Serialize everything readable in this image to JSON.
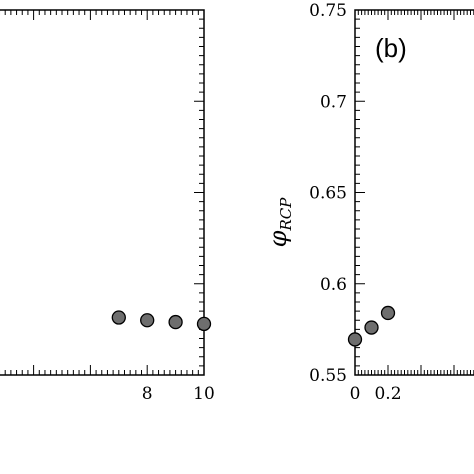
{
  "chart_data": [
    {
      "type": "scatter",
      "panel_label": "",
      "xlabel": "",
      "ylabel": "",
      "xlim": [
        0,
        10
      ],
      "ylim": [
        0.55,
        0.75
      ],
      "x_ticks": [
        8,
        10
      ],
      "x_tick_labels": [
        "8",
        "10"
      ],
      "points": [
        {
          "x": 7,
          "y": 0.5815
        },
        {
          "x": 8,
          "y": 0.58
        },
        {
          "x": 9,
          "y": 0.579
        },
        {
          "x": 10,
          "y": 0.578
        }
      ],
      "marker_color": "#6e6e6e"
    },
    {
      "type": "scatter",
      "panel_label": "(b)",
      "xlabel": "",
      "ylabel": "φRCP",
      "ylabel_main": "φ",
      "ylabel_sub": "RCP",
      "xlim": [
        0,
        1
      ],
      "ylim": [
        0.55,
        0.75
      ],
      "x_ticks": [
        0,
        0.2
      ],
      "x_tick_labels": [
        "0",
        "0.2"
      ],
      "y_ticks": [
        0.55,
        0.6,
        0.65,
        0.7,
        0.75
      ],
      "y_tick_labels": [
        "0.55",
        "0.6",
        "0.65",
        "0.7",
        "0.75"
      ],
      "points": [
        {
          "x": 0,
          "y": 0.5695
        },
        {
          "x": 0.1,
          "y": 0.576
        },
        {
          "x": 0.2,
          "y": 0.584
        }
      ],
      "marker_color": "#6e6e6e"
    }
  ]
}
